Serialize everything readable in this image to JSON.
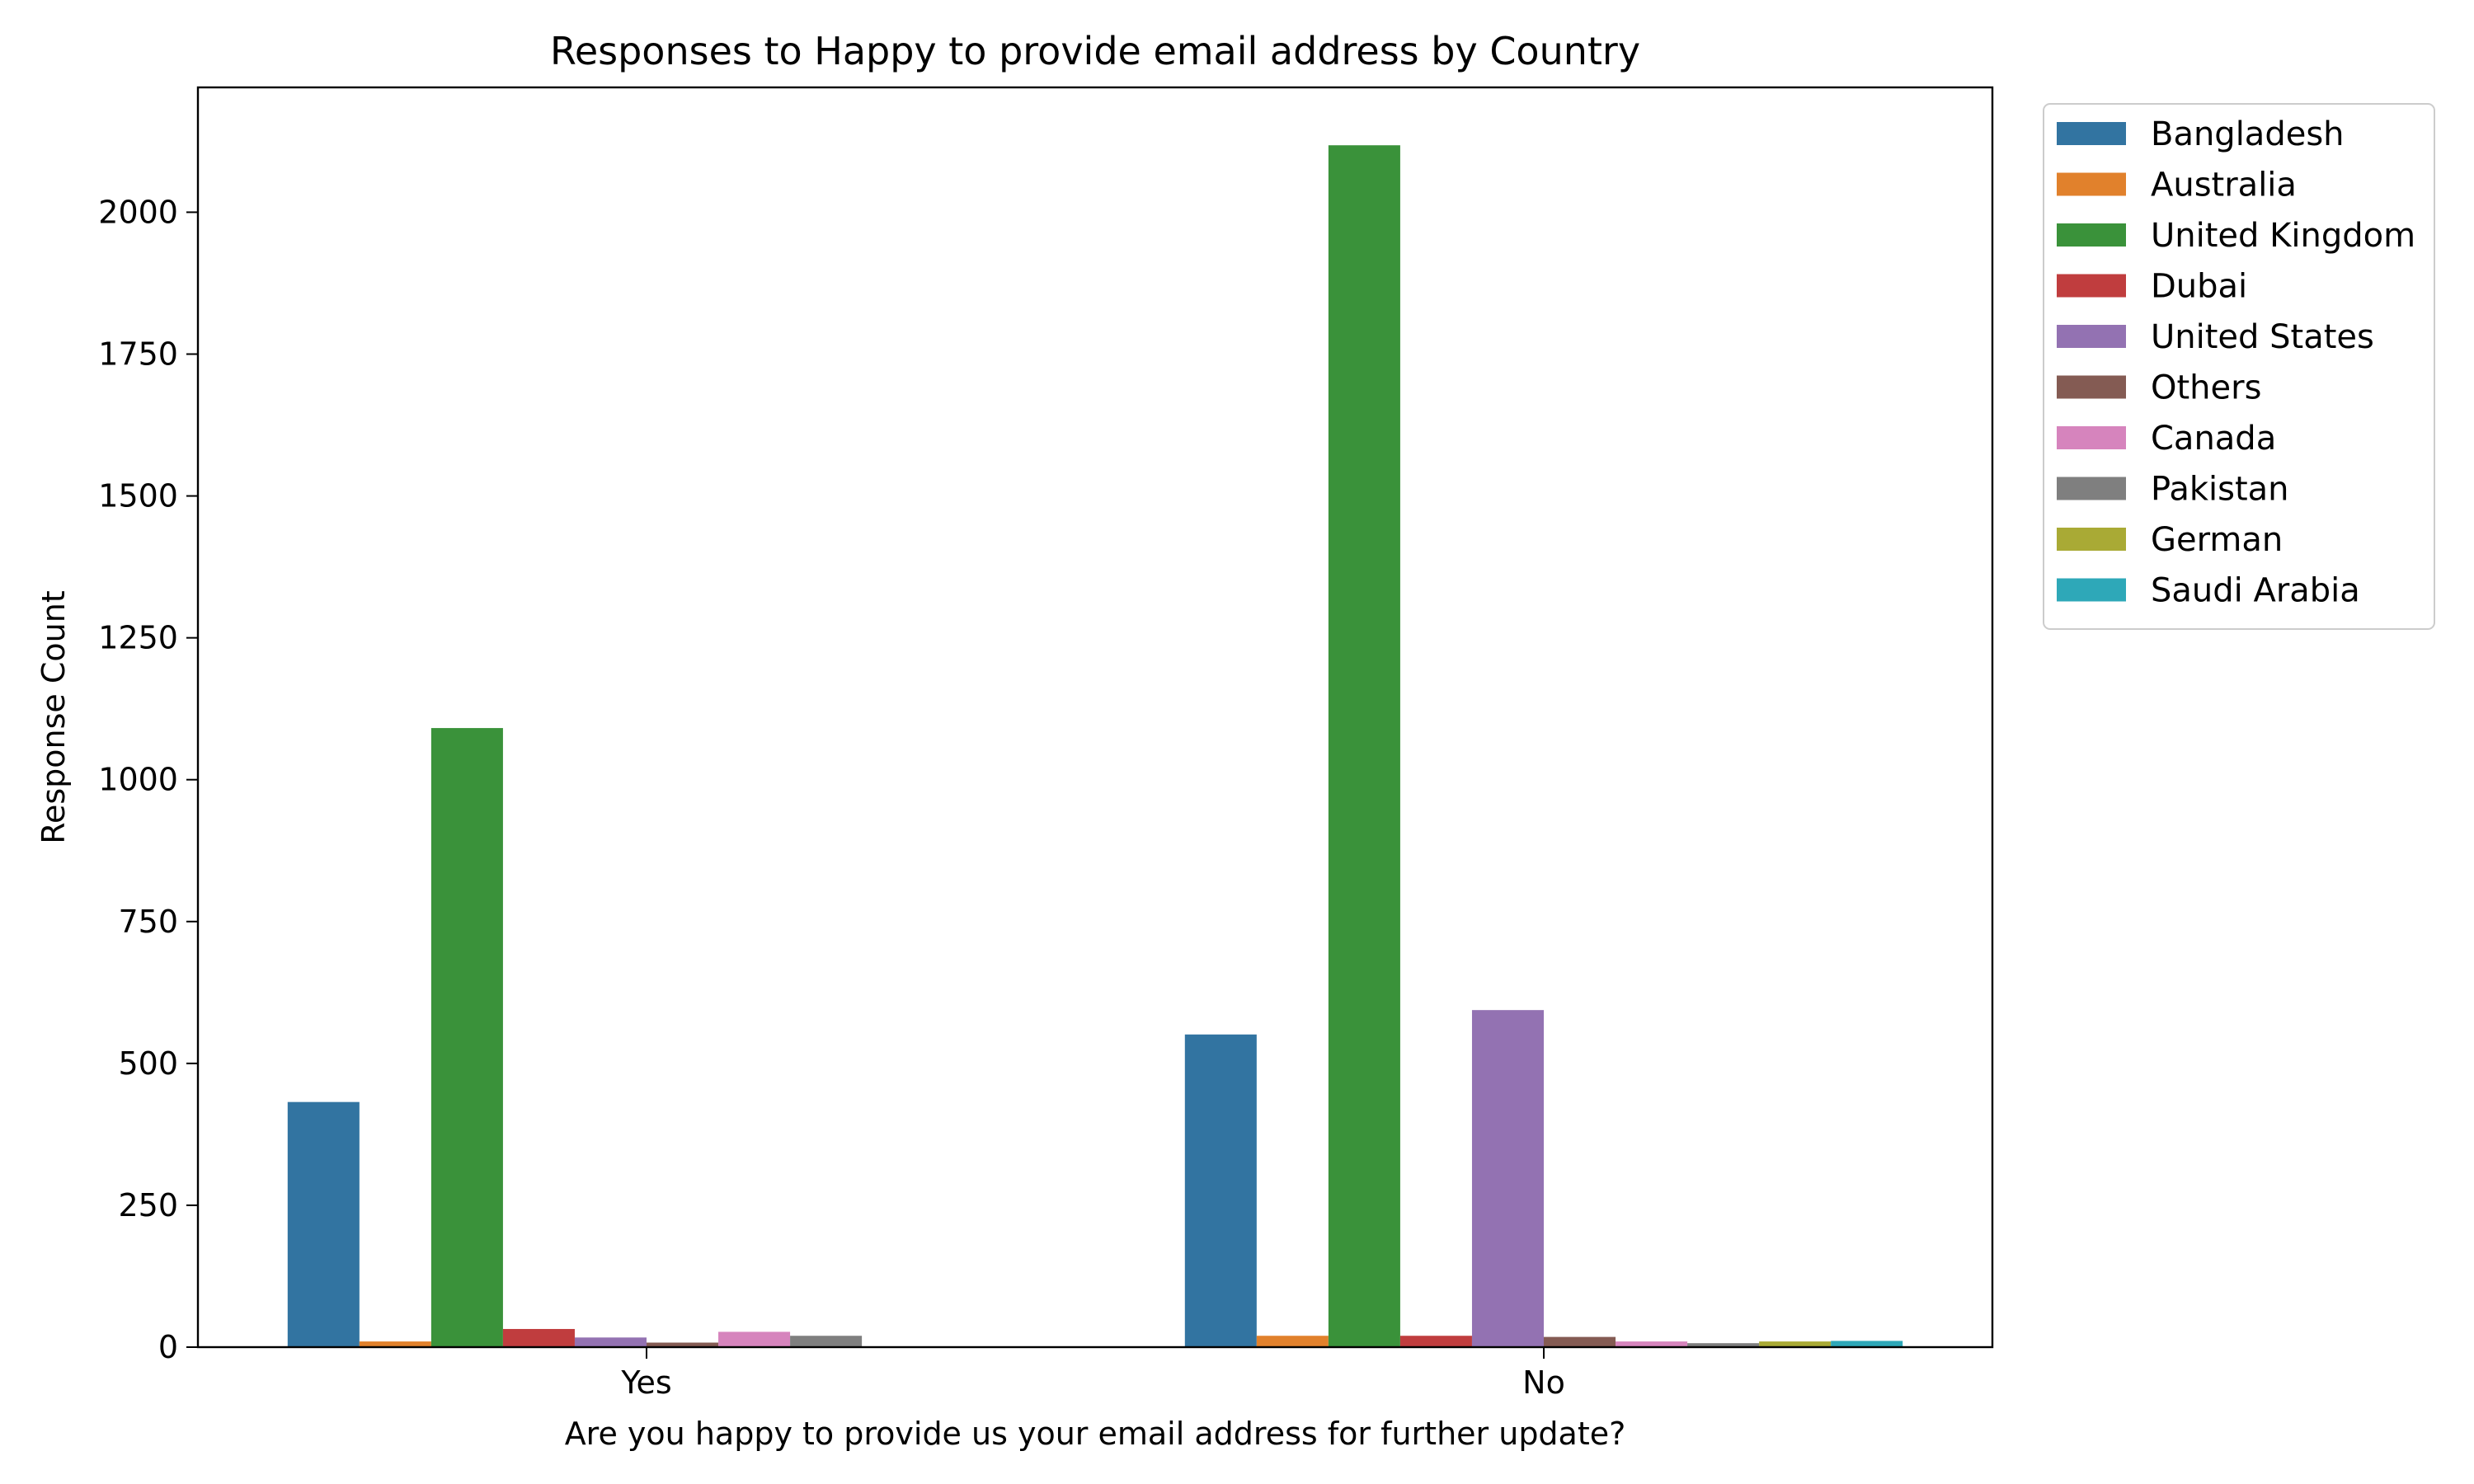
{
  "chart_data": {
    "type": "bar",
    "title": "Responses to Happy to provide email address by Country",
    "xlabel": "Are you happy to provide us your email address for further update?",
    "ylabel": "Response Count",
    "categories": [
      "Yes",
      "No"
    ],
    "ylim": [
      0,
      2220
    ],
    "yticks": [
      0,
      250,
      500,
      750,
      1000,
      1250,
      1500,
      1750,
      2000
    ],
    "grid": false,
    "legend_position": "outside-top-right",
    "series": [
      {
        "name": "Bangladesh",
        "color": "#3274a1",
        "values": [
          432,
          551
        ]
      },
      {
        "name": "Australia",
        "color": "#e1812c",
        "values": [
          10,
          20
        ]
      },
      {
        "name": "United Kingdom",
        "color": "#3a923a",
        "values": [
          1091,
          2118
        ]
      },
      {
        "name": "Dubai",
        "color": "#c03d3e",
        "values": [
          32,
          20
        ]
      },
      {
        "name": "United States",
        "color": "#9372b2",
        "values": [
          17,
          594
        ]
      },
      {
        "name": "Others",
        "color": "#845b53",
        "values": [
          8,
          18
        ]
      },
      {
        "name": "Canada",
        "color": "#d684bd",
        "values": [
          27,
          10
        ]
      },
      {
        "name": "Pakistan",
        "color": "#7f7f7f",
        "values": [
          20,
          7
        ]
      },
      {
        "name": "German",
        "color": "#a9aa35",
        "values": [
          0,
          10
        ]
      },
      {
        "name": "Saudi Arabia",
        "color": "#2ea8b8",
        "values": [
          0,
          11
        ]
      }
    ]
  }
}
